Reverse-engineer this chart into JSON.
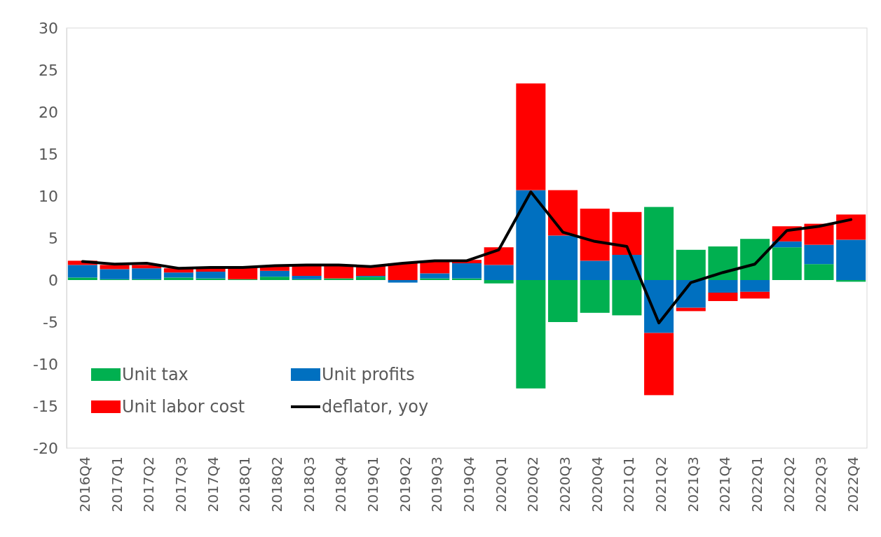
{
  "chart_data": {
    "type": "bar",
    "stacked": true,
    "categories": [
      "2016Q4",
      "2017Q1",
      "2017Q2",
      "2017Q3",
      "2017Q4",
      "2018Q1",
      "2018Q2",
      "2018Q3",
      "2018Q4",
      "2019Q1",
      "2019Q2",
      "2019Q3",
      "2019Q4",
      "2020Q1",
      "2020Q2",
      "2020Q3",
      "2020Q4",
      "2021Q1",
      "2021Q2",
      "2021Q3",
      "2021Q4",
      "2022Q1",
      "2022Q2",
      "2022Q3",
      "2022Q4"
    ],
    "series": [
      {
        "name": "Unit tax",
        "color": "#00b050",
        "values": [
          0.3,
          0.1,
          0.1,
          0.3,
          0.2,
          0.1,
          0.4,
          0.1,
          0.2,
          0.4,
          0,
          0.2,
          0.2,
          -0.4,
          -12.9,
          -5.0,
          -3.9,
          -4.2,
          8.7,
          3.6,
          4.0,
          4.9,
          3.9,
          1.9,
          -0.2
        ]
      },
      {
        "name": "Unit profits",
        "color": "#0070c0",
        "values": [
          1.5,
          1.2,
          1.3,
          0.6,
          0.8,
          0,
          0.7,
          0.4,
          0,
          0.1,
          -0.3,
          0.6,
          1.8,
          1.8,
          10.7,
          5.3,
          2.3,
          3.0,
          -6.3,
          -3.3,
          -1.5,
          -1.4,
          0.7,
          2.3,
          4.8
        ]
      },
      {
        "name": "Unit labor cost",
        "color": "#ff0000",
        "values": [
          0.5,
          0.5,
          0.4,
          0.5,
          0.5,
          1.4,
          0.6,
          1.3,
          1.6,
          1.2,
          2.0,
          1.4,
          0.4,
          2.1,
          12.7,
          5.4,
          6.2,
          5.1,
          -7.4,
          -0.4,
          -1.0,
          -0.8,
          1.8,
          2.5,
          3.0
        ]
      },
      {
        "name": "deflator, yoy",
        "type": "line",
        "color": "#000000",
        "values": [
          2.2,
          1.9,
          2.0,
          1.4,
          1.5,
          1.5,
          1.7,
          1.8,
          1.8,
          1.6,
          2.0,
          2.3,
          2.3,
          3.6,
          10.5,
          5.7,
          4.6,
          4.0,
          -5.1,
          -0.3,
          0.9,
          1.9,
          5.9,
          6.4,
          7.2
        ]
      }
    ],
    "ylim": [
      -20,
      30
    ],
    "yticks": [
      -20,
      -15,
      -10,
      -5,
      0,
      5,
      10,
      15,
      20,
      25,
      30
    ],
    "legend": "bottom left"
  }
}
